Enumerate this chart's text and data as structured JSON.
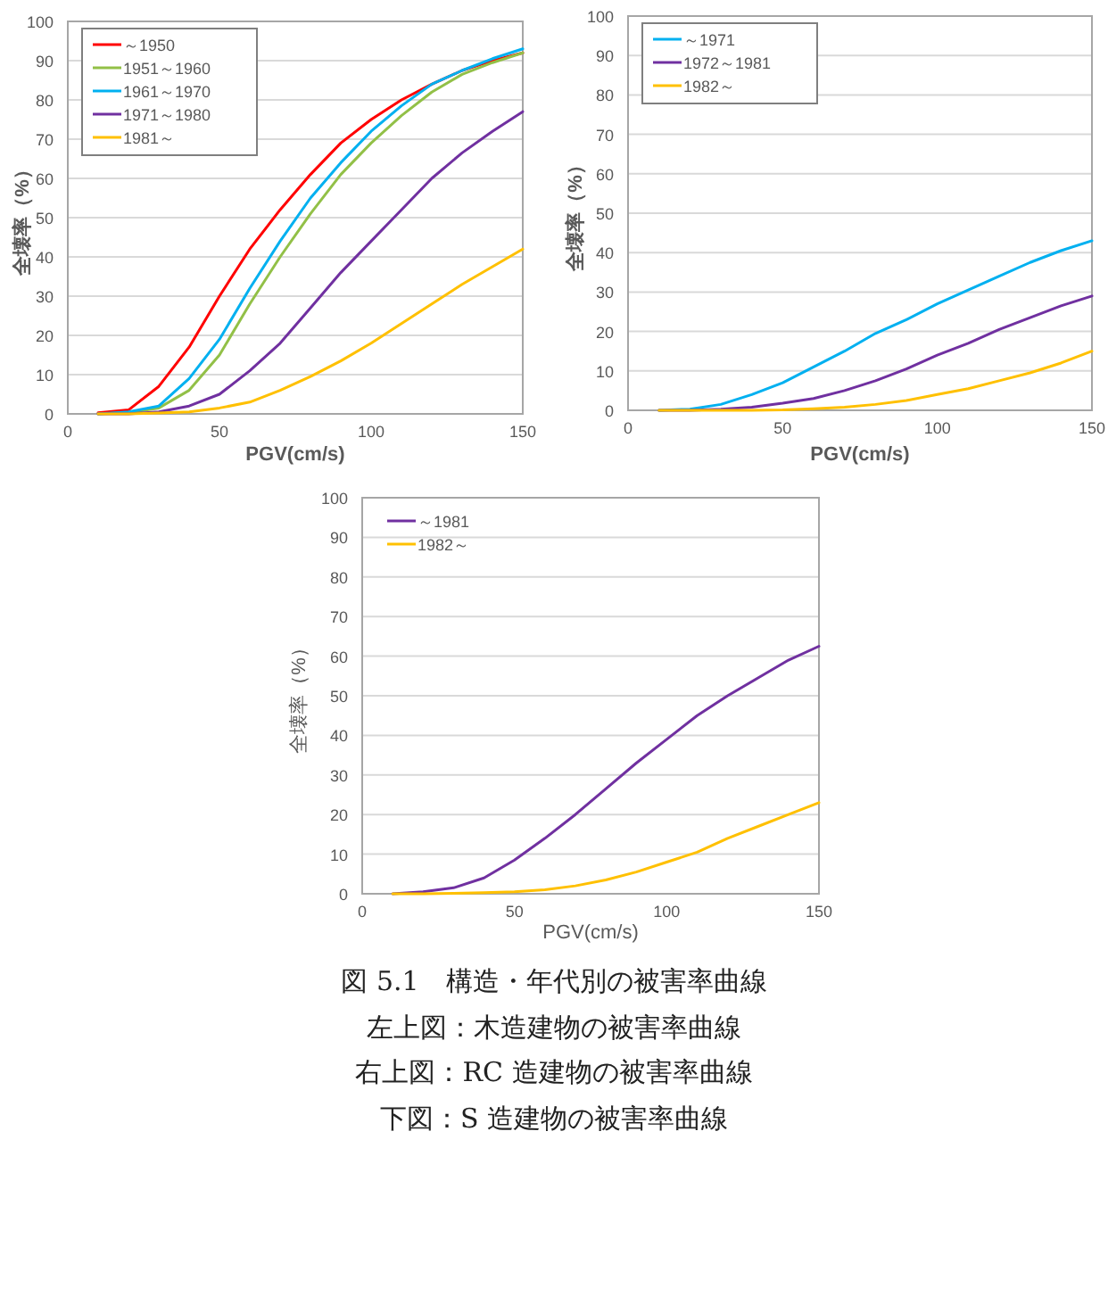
{
  "chart_data": [
    {
      "type": "line",
      "xlabel": "PGV(cm/s)",
      "ylabel": "全壊率（%）",
      "x": [
        10,
        20,
        30,
        40,
        50,
        60,
        70,
        80,
        90,
        100,
        110,
        120,
        130,
        140,
        150
      ],
      "xlim": [
        0,
        150
      ],
      "xticks": [
        0,
        50,
        100,
        150
      ],
      "ylim": [
        0,
        100
      ],
      "yticks": [
        0,
        10,
        20,
        30,
        40,
        50,
        60,
        70,
        80,
        90,
        100
      ],
      "grid": "y",
      "legend": "top left",
      "marker": "none",
      "line_style": "solid",
      "series": [
        {
          "name": "～1950",
          "color": "#ff0000",
          "values": [
            0.3,
            1,
            7,
            17,
            30,
            42,
            52,
            61,
            69,
            75,
            80,
            84,
            87.5,
            90,
            92
          ]
        },
        {
          "name": "1951～1960",
          "color": "#92c047",
          "values": [
            0,
            0.3,
            1.5,
            6,
            15,
            28,
            40,
            51,
            61,
            69,
            76,
            82,
            86.5,
            89.5,
            92
          ]
        },
        {
          "name": "1961～1970",
          "color": "#00b0f0",
          "values": [
            0,
            0.5,
            2,
            9,
            19,
            32,
            44,
            55,
            64,
            72,
            78.5,
            84,
            87.5,
            90.5,
            93
          ]
        },
        {
          "name": "1971～1980",
          "color": "#7030a0",
          "values": [
            0,
            0,
            0.5,
            2,
            5,
            11,
            18,
            27,
            36,
            44,
            52,
            60,
            66.5,
            72,
            77
          ]
        },
        {
          "name": "1981～",
          "color": "#ffc000",
          "values": [
            0,
            0,
            0.2,
            0.5,
            1.5,
            3,
            6,
            9.5,
            13.5,
            18,
            23,
            28,
            33,
            37.5,
            42
          ]
        }
      ]
    },
    {
      "type": "line",
      "xlabel": "PGV(cm/s)",
      "ylabel": "全壊率（%）",
      "x": [
        10,
        20,
        30,
        40,
        50,
        60,
        70,
        80,
        90,
        100,
        110,
        120,
        130,
        140,
        150
      ],
      "xlim": [
        0,
        150
      ],
      "xticks": [
        0,
        50,
        100,
        150
      ],
      "ylim": [
        0,
        100
      ],
      "yticks": [
        0,
        10,
        20,
        30,
        40,
        50,
        60,
        70,
        80,
        90,
        100
      ],
      "grid": "y",
      "legend": "top left",
      "marker": "none",
      "line_style": "solid",
      "series": [
        {
          "name": "～1971",
          "color": "#00b0f0",
          "values": [
            0,
            0.3,
            1.5,
            4,
            7,
            11,
            15,
            19.5,
            23,
            27,
            30.5,
            34,
            37.5,
            40.5,
            43
          ]
        },
        {
          "name": "1972～1981",
          "color": "#7030a0",
          "values": [
            0,
            0,
            0.3,
            0.8,
            1.8,
            3,
            5,
            7.5,
            10.5,
            14,
            17,
            20.5,
            23.5,
            26.5,
            29
          ]
        },
        {
          "name": "1982～",
          "color": "#ffc000",
          "values": [
            0,
            0,
            0,
            0,
            0.1,
            0.4,
            0.8,
            1.5,
            2.5,
            4,
            5.5,
            7.5,
            9.5,
            12,
            15
          ]
        }
      ]
    },
    {
      "type": "line",
      "xlabel": "PGV(cm/s)",
      "ylabel": "全壊率（%）",
      "x": [
        10,
        20,
        30,
        40,
        50,
        60,
        70,
        80,
        90,
        100,
        110,
        120,
        130,
        140,
        150
      ],
      "xlim": [
        0,
        150
      ],
      "xticks": [
        0,
        50,
        100,
        150
      ],
      "ylim": [
        0,
        100
      ],
      "yticks": [
        0,
        10,
        20,
        30,
        40,
        50,
        60,
        70,
        80,
        90,
        100
      ],
      "grid": "y",
      "legend": "top left",
      "marker": "none",
      "line_style": "solid",
      "series": [
        {
          "name": "～1981",
          "color": "#7030a0",
          "values": [
            0,
            0.5,
            1.5,
            4,
            8.5,
            14,
            20,
            26.5,
            33,
            39,
            45,
            50,
            54.5,
            59,
            62.5
          ]
        },
        {
          "name": "1982～",
          "color": "#ffc000",
          "values": [
            0,
            0,
            0.1,
            0.3,
            0.5,
            1,
            2,
            3.5,
            5.5,
            8,
            10.5,
            14,
            17,
            20,
            23
          ]
        }
      ],
      "annotations": [
        "図 5.1　構造・年代別の被害率曲線",
        "左上図：木造建物の被害率曲線",
        "右上図：RC 造建物の被害率曲線",
        "下図：S 造建物の被害率曲線"
      ]
    }
  ]
}
